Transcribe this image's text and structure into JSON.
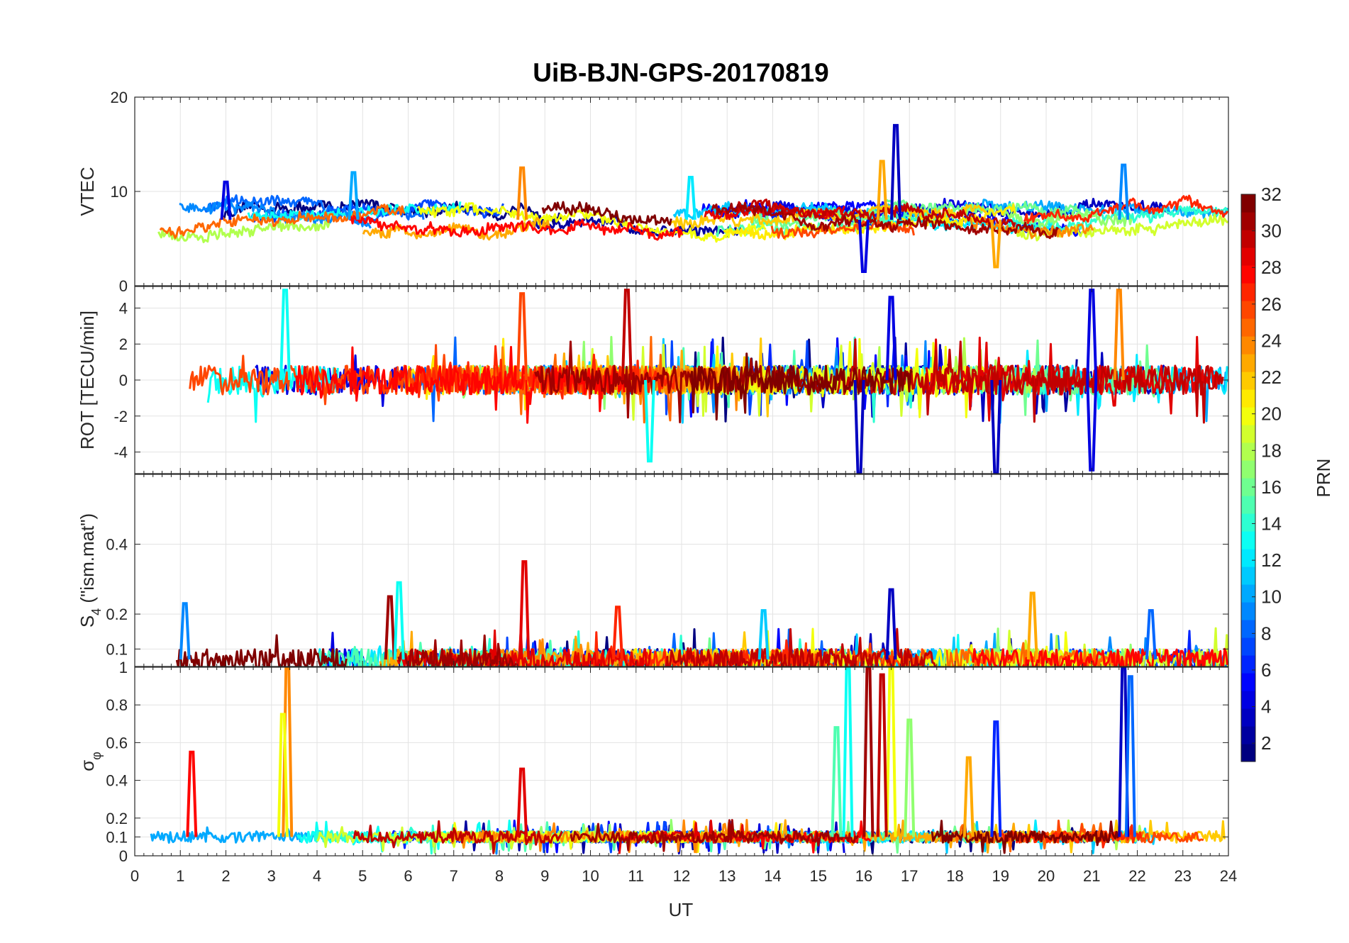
{
  "chart_data": {
    "title": "UiB-BJN-GPS-20170819",
    "type": "line",
    "xlabel": "UT",
    "xlim": [
      0,
      24
    ],
    "xticks": [
      "0",
      "1",
      "2",
      "3",
      "4",
      "5",
      "6",
      "7",
      "8",
      "9",
      "10",
      "11",
      "12",
      "13",
      "14",
      "15",
      "16",
      "17",
      "18",
      "19",
      "20",
      "21",
      "22",
      "23",
      "24"
    ],
    "panels": [
      {
        "id": "vtec",
        "ylabel": "VTEC",
        "ylim": [
          0,
          20
        ],
        "yticks": [
          "0",
          "10",
          "20"
        ],
        "yticks_values": [
          0,
          10,
          20
        ],
        "baseline": 7.0,
        "noise": 1.0,
        "spikes": [
          [
            2.0,
            11,
            4
          ],
          [
            4.8,
            12,
            10
          ],
          [
            8.5,
            12.5,
            24
          ],
          [
            16.7,
            17,
            3
          ],
          [
            16.4,
            13.2,
            23
          ],
          [
            18.9,
            2,
            23
          ],
          [
            21.7,
            12.8,
            9
          ],
          [
            12.2,
            11.5,
            12
          ],
          [
            16.0,
            1.5,
            4
          ]
        ]
      },
      {
        "id": "rot",
        "ylabel": "ROT [TECU/min]",
        "ylim": [
          -5.2,
          5.2
        ],
        "yticks": [
          "-4",
          "-2",
          "0",
          "2",
          "4"
        ],
        "yticks_values": [
          -4,
          -2,
          0,
          2,
          4
        ],
        "baseline": 0,
        "noise": 0.8,
        "spikes": [
          [
            3.3,
            5.0,
            13
          ],
          [
            8.5,
            4.8,
            26
          ],
          [
            10.8,
            5.0,
            30
          ],
          [
            15.9,
            -5.2,
            3
          ],
          [
            16.6,
            4.6,
            4
          ],
          [
            18.9,
            -5.2,
            3
          ],
          [
            21.0,
            5.0,
            4
          ],
          [
            21.0,
            -5.0,
            4
          ],
          [
            21.6,
            5.0,
            24
          ],
          [
            11.3,
            -4.5,
            13
          ]
        ]
      },
      {
        "id": "s4",
        "ylabel": "S4 (\"ism.mat\")",
        "ylabel_main": "S",
        "ylabel_sub": "4",
        "ylabel_rest": " (\"ism.mat\")",
        "ylim": [
          0.05,
          0.6
        ],
        "yticks": [
          "0.1",
          "0.2",
          "0.4"
        ],
        "yticks_values": [
          0.1,
          0.2,
          0.4
        ],
        "baseline": 0.07,
        "noise": 0.03,
        "spikes": [
          [
            8.55,
            0.35,
            29
          ],
          [
            5.6,
            0.25,
            31
          ],
          [
            5.8,
            0.29,
            13
          ],
          [
            16.6,
            0.27,
            3
          ],
          [
            19.7,
            0.26,
            23
          ],
          [
            1.1,
            0.23,
            9
          ],
          [
            10.6,
            0.22,
            27
          ],
          [
            13.8,
            0.21,
            11
          ],
          [
            22.3,
            0.21,
            8
          ]
        ]
      },
      {
        "id": "sigma",
        "ylabel": "σφ",
        "ylabel_main": "σ",
        "ylabel_sub": "φ",
        "ylim": [
          0,
          1
        ],
        "yticks": [
          "0",
          "0.1",
          "0.2",
          "0.4",
          "0.6",
          "0.8",
          "1"
        ],
        "yticks_values": [
          0,
          0.1,
          0.2,
          0.4,
          0.6,
          0.8,
          1.0
        ],
        "baseline": 0.1,
        "noise": 0.03,
        "spikes": [
          [
            1.25,
            0.55,
            28
          ],
          [
            3.35,
            1.0,
            24
          ],
          [
            3.25,
            0.75,
            20
          ],
          [
            8.5,
            0.46,
            29
          ],
          [
            15.65,
            1.0,
            13
          ],
          [
            16.1,
            1.0,
            31
          ],
          [
            16.6,
            1.0,
            20
          ],
          [
            16.4,
            0.96,
            30
          ],
          [
            17.0,
            0.72,
            17
          ],
          [
            18.3,
            0.52,
            23
          ],
          [
            18.9,
            0.71,
            6
          ],
          [
            21.7,
            1.0,
            3
          ],
          [
            21.85,
            0.95,
            8
          ],
          [
            15.4,
            0.68,
            15
          ]
        ]
      }
    ],
    "colorbar": {
      "label": "PRN",
      "range": [
        1,
        32
      ],
      "ticks": [
        "2",
        "4",
        "6",
        "8",
        "10",
        "12",
        "14",
        "16",
        "18",
        "20",
        "22",
        "24",
        "26",
        "28",
        "30",
        "32"
      ],
      "colormap": "jet"
    }
  }
}
